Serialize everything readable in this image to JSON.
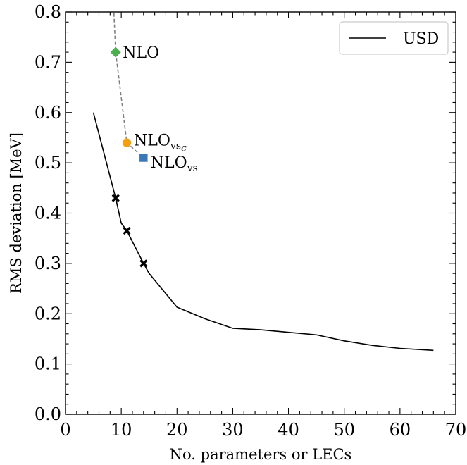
{
  "chart_data": {
    "type": "line",
    "xlabel": "No. parameters or LECs",
    "ylabel": "RMS deviation [MeV]",
    "xlim": [
      0,
      70
    ],
    "ylim": [
      0.0,
      0.8
    ],
    "xticks": [
      0,
      10,
      20,
      30,
      40,
      50,
      60,
      70
    ],
    "yticks": [
      0.0,
      0.1,
      0.2,
      0.3,
      0.4,
      0.5,
      0.6,
      0.7,
      0.8
    ],
    "xtick_labels": [
      "0",
      "10",
      "20",
      "30",
      "40",
      "50",
      "60",
      "70"
    ],
    "ytick_labels": [
      "0.0",
      "0.1",
      "0.2",
      "0.3",
      "0.4",
      "0.5",
      "0.6",
      "0.7",
      "0.8"
    ],
    "grid": false,
    "legend": {
      "position": "top-right",
      "entries": [
        "USD"
      ]
    },
    "series": [
      {
        "name": "USD",
        "style": "solid",
        "color": "#000000",
        "x": [
          5,
          9,
          10,
          11,
          14,
          15,
          20,
          25,
          30,
          35,
          40,
          45,
          50,
          55,
          60,
          66
        ],
        "y": [
          0.6,
          0.43,
          0.38,
          0.365,
          0.3,
          0.28,
          0.213,
          0.19,
          0.171,
          0.168,
          0.163,
          0.158,
          0.146,
          0.137,
          0.131,
          0.127
        ]
      }
    ],
    "usd_markers": {
      "x": [
        9,
        11,
        14
      ],
      "y": [
        0.43,
        0.365,
        0.3
      ],
      "marker": "x",
      "color": "#000000"
    },
    "nlo_path": {
      "style": "dashed",
      "color": "#808080",
      "x": [
        8.6,
        9,
        11,
        14
      ],
      "y": [
        0.82,
        0.72,
        0.54,
        0.51
      ]
    },
    "points": [
      {
        "label": "NLO",
        "subscript": "",
        "x": 9,
        "y": 0.72,
        "marker": "diamond",
        "color": "#4caf50"
      },
      {
        "label": "NLO",
        "subscript": "vs",
        "sub_italic": "c",
        "x": 11,
        "y": 0.54,
        "marker": "circle",
        "color": "#f5a00f"
      },
      {
        "label": "NLO",
        "subscript": "vs",
        "sub_italic": "",
        "x": 14,
        "y": 0.51,
        "marker": "square",
        "color": "#3a78b8"
      }
    ]
  }
}
